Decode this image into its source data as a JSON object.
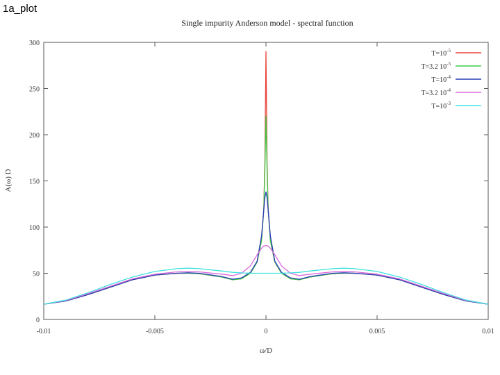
{
  "page": {
    "title": "1a_plot"
  },
  "chart_data": {
    "type": "line",
    "title": "Single impurity Anderson model - spectral function",
    "xlabel": "ω/D",
    "ylabel": "A(ω) D",
    "xlim": [
      -0.01,
      0.01
    ],
    "ylim": [
      0,
      300
    ],
    "x_ticks": [
      -0.01,
      -0.005,
      0,
      0.005,
      0.01
    ],
    "x_tick_labels": [
      "-0.01",
      "-0.005",
      "0",
      "0.005",
      "0.01"
    ],
    "y_ticks": [
      0,
      50,
      100,
      150,
      200,
      250,
      300
    ],
    "y_tick_labels": [
      "0",
      "50",
      "100",
      "150",
      "200",
      "250",
      "300"
    ],
    "grid": false,
    "legend_position": "top-right",
    "series": [
      {
        "name": "T=10^-5",
        "label_base": "T=10",
        "label_exp": "-5",
        "color": "#e8423a",
        "points": [
          [
            -0.01,
            16.5
          ],
          [
            -0.009,
            20
          ],
          [
            -0.008,
            27
          ],
          [
            -0.007,
            35
          ],
          [
            -0.006,
            43
          ],
          [
            -0.005,
            48
          ],
          [
            -0.004,
            50
          ],
          [
            -0.0035,
            50
          ],
          [
            -0.003,
            49.5
          ],
          [
            -0.002,
            46
          ],
          [
            -0.0015,
            43
          ],
          [
            -0.0011,
            44
          ],
          [
            -0.0007,
            50
          ],
          [
            -0.0004,
            62
          ],
          [
            -0.0002,
            85
          ],
          [
            -0.0001,
            120
          ],
          [
            -5e-05,
            170
          ],
          [
            0,
            290
          ],
          [
            5e-05,
            170
          ],
          [
            0.0001,
            120
          ],
          [
            0.0002,
            85
          ],
          [
            0.0004,
            62
          ],
          [
            0.0007,
            50
          ],
          [
            0.0011,
            44
          ],
          [
            0.0015,
            43
          ],
          [
            0.002,
            46
          ],
          [
            0.003,
            49.5
          ],
          [
            0.0035,
            50
          ],
          [
            0.004,
            50
          ],
          [
            0.005,
            48
          ],
          [
            0.006,
            43
          ],
          [
            0.007,
            35
          ],
          [
            0.008,
            27
          ],
          [
            0.009,
            20
          ],
          [
            0.01,
            16.5
          ]
        ]
      },
      {
        "name": "T=3.2 10^-5",
        "label_base": "T=3.2 10",
        "label_exp": "-5",
        "color": "#3ccf4a",
        "points": [
          [
            -0.01,
            16.5
          ],
          [
            -0.009,
            20
          ],
          [
            -0.008,
            27
          ],
          [
            -0.007,
            35
          ],
          [
            -0.006,
            43
          ],
          [
            -0.005,
            48
          ],
          [
            -0.004,
            50
          ],
          [
            -0.0035,
            50
          ],
          [
            -0.003,
            49.5
          ],
          [
            -0.002,
            46
          ],
          [
            -0.0015,
            43
          ],
          [
            -0.0011,
            44
          ],
          [
            -0.0007,
            50
          ],
          [
            -0.0004,
            62
          ],
          [
            -0.0002,
            85
          ],
          [
            -0.0001,
            118
          ],
          [
            -5e-05,
            160
          ],
          [
            0,
            220
          ],
          [
            5e-05,
            160
          ],
          [
            0.0001,
            118
          ],
          [
            0.0002,
            85
          ],
          [
            0.0004,
            62
          ],
          [
            0.0007,
            50
          ],
          [
            0.0011,
            44
          ],
          [
            0.0015,
            43
          ],
          [
            0.002,
            46
          ],
          [
            0.003,
            49.5
          ],
          [
            0.0035,
            50
          ],
          [
            0.004,
            50
          ],
          [
            0.005,
            48
          ],
          [
            0.006,
            43
          ],
          [
            0.007,
            35
          ],
          [
            0.008,
            27
          ],
          [
            0.009,
            20
          ],
          [
            0.01,
            16.5
          ]
        ]
      },
      {
        "name": "T=10^-4",
        "label_base": "T=10",
        "label_exp": "-4",
        "color": "#2a3bb8",
        "points": [
          [
            -0.01,
            16.5
          ],
          [
            -0.009,
            20
          ],
          [
            -0.008,
            27
          ],
          [
            -0.007,
            35
          ],
          [
            -0.006,
            43
          ],
          [
            -0.005,
            48
          ],
          [
            -0.004,
            50
          ],
          [
            -0.0035,
            50.5
          ],
          [
            -0.003,
            50
          ],
          [
            -0.002,
            46.5
          ],
          [
            -0.0015,
            43.5
          ],
          [
            -0.0011,
            45
          ],
          [
            -0.0007,
            51
          ],
          [
            -0.0004,
            63
          ],
          [
            -0.0002,
            90
          ],
          [
            -0.0001,
            118
          ],
          [
            -5e-05,
            132
          ],
          [
            0,
            138
          ],
          [
            5e-05,
            132
          ],
          [
            0.0001,
            118
          ],
          [
            0.0002,
            90
          ],
          [
            0.0004,
            63
          ],
          [
            0.0007,
            51
          ],
          [
            0.0011,
            45
          ],
          [
            0.0015,
            43.5
          ],
          [
            0.002,
            46.5
          ],
          [
            0.003,
            50
          ],
          [
            0.0035,
            50.5
          ],
          [
            0.004,
            50
          ],
          [
            0.005,
            48
          ],
          [
            0.006,
            43
          ],
          [
            0.007,
            35
          ],
          [
            0.008,
            27
          ],
          [
            0.009,
            20
          ],
          [
            0.01,
            16.5
          ]
        ]
      },
      {
        "name": "T=3.2 10^-4",
        "label_base": "T=3.2 10",
        "label_exp": "-4",
        "color": "#d86adb",
        "points": [
          [
            -0.01,
            16.5
          ],
          [
            -0.009,
            20.5
          ],
          [
            -0.008,
            28
          ],
          [
            -0.007,
            36
          ],
          [
            -0.006,
            44
          ],
          [
            -0.005,
            49
          ],
          [
            -0.004,
            51.5
          ],
          [
            -0.0035,
            52
          ],
          [
            -0.003,
            51.5
          ],
          [
            -0.002,
            49
          ],
          [
            -0.0015,
            47.5
          ],
          [
            -0.0011,
            50
          ],
          [
            -0.0007,
            58
          ],
          [
            -0.0004,
            70
          ],
          [
            -0.0002,
            77
          ],
          [
            -0.0001,
            79.5
          ],
          [
            0,
            80
          ],
          [
            0.0001,
            79.5
          ],
          [
            0.0002,
            77
          ],
          [
            0.0004,
            70
          ],
          [
            0.0007,
            58
          ],
          [
            0.0011,
            50
          ],
          [
            0.0015,
            47.5
          ],
          [
            0.002,
            49
          ],
          [
            0.003,
            51.5
          ],
          [
            0.0035,
            52
          ],
          [
            0.004,
            51.5
          ],
          [
            0.005,
            49
          ],
          [
            0.006,
            44
          ],
          [
            0.007,
            36
          ],
          [
            0.008,
            28
          ],
          [
            0.009,
            20.5
          ],
          [
            0.01,
            16.5
          ]
        ]
      },
      {
        "name": "T=10^-3",
        "label_base": "T=10",
        "label_exp": "-3",
        "color": "#3fe0e0",
        "points": [
          [
            -0.01,
            16.5
          ],
          [
            -0.009,
            21
          ],
          [
            -0.008,
            29
          ],
          [
            -0.007,
            38
          ],
          [
            -0.006,
            46
          ],
          [
            -0.005,
            52
          ],
          [
            -0.004,
            55
          ],
          [
            -0.0035,
            55.5
          ],
          [
            -0.003,
            55
          ],
          [
            -0.002,
            52.5
          ],
          [
            -0.0015,
            51
          ],
          [
            -0.001,
            50.3
          ],
          [
            -0.0005,
            50
          ],
          [
            0,
            50
          ],
          [
            0.0005,
            50
          ],
          [
            0.001,
            50.3
          ],
          [
            0.0015,
            51
          ],
          [
            0.002,
            52.5
          ],
          [
            0.003,
            55
          ],
          [
            0.0035,
            55.5
          ],
          [
            0.004,
            55
          ],
          [
            0.005,
            52
          ],
          [
            0.006,
            46
          ],
          [
            0.007,
            38
          ],
          [
            0.008,
            29
          ],
          [
            0.009,
            21
          ],
          [
            0.01,
            16.5
          ]
        ]
      }
    ]
  }
}
